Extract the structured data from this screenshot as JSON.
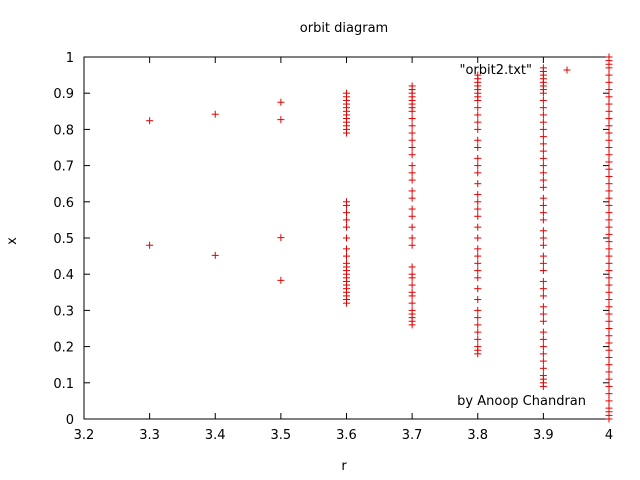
{
  "chart_data": {
    "type": "scatter",
    "title": "orbit diagram",
    "xlabel": "r",
    "ylabel": "x",
    "xlim": [
      3.2,
      4.0
    ],
    "ylim": [
      0,
      1
    ],
    "xticks": [
      "3.2",
      "3.3",
      "3.4",
      "3.5",
      "3.6",
      "3.7",
      "3.8",
      "3.9",
      "4"
    ],
    "yticks": [
      "0",
      "0.1",
      "0.2",
      "0.3",
      "0.4",
      "0.5",
      "0.6",
      "0.7",
      "0.8",
      "0.9",
      "1"
    ],
    "legend": {
      "position": "top-right",
      "marker": "+"
    },
    "annotation": "by Anoop Chandran",
    "grid": false,
    "marker_color": "#e60000",
    "series": [
      {
        "name": "\"orbit2.txt\"",
        "points": [
          [
            3.3,
            0.824
          ],
          [
            3.3,
            0.48
          ],
          [
            3.4,
            0.842
          ],
          [
            3.4,
            0.452
          ],
          [
            3.5,
            0.875
          ],
          [
            3.5,
            0.827
          ],
          [
            3.5,
            0.501
          ],
          [
            3.5,
            0.383
          ],
          [
            3.6,
            0.32
          ],
          [
            3.6,
            0.33
          ],
          [
            3.6,
            0.34
          ],
          [
            3.6,
            0.35
          ],
          [
            3.6,
            0.36
          ],
          [
            3.6,
            0.37
          ],
          [
            3.6,
            0.38
          ],
          [
            3.6,
            0.39
          ],
          [
            3.6,
            0.4
          ],
          [
            3.6,
            0.41
          ],
          [
            3.6,
            0.42
          ],
          [
            3.6,
            0.43
          ],
          [
            3.6,
            0.45
          ],
          [
            3.6,
            0.47
          ],
          [
            3.6,
            0.5
          ],
          [
            3.6,
            0.53
          ],
          [
            3.6,
            0.55
          ],
          [
            3.6,
            0.57
          ],
          [
            3.6,
            0.59
          ],
          [
            3.6,
            0.6
          ],
          [
            3.6,
            0.79
          ],
          [
            3.6,
            0.8
          ],
          [
            3.6,
            0.81
          ],
          [
            3.6,
            0.82
          ],
          [
            3.6,
            0.83
          ],
          [
            3.6,
            0.84
          ],
          [
            3.6,
            0.85
          ],
          [
            3.6,
            0.86
          ],
          [
            3.6,
            0.87
          ],
          [
            3.6,
            0.88
          ],
          [
            3.6,
            0.89
          ],
          [
            3.6,
            0.9
          ],
          [
            3.7,
            0.26
          ],
          [
            3.7,
            0.27
          ],
          [
            3.7,
            0.28
          ],
          [
            3.7,
            0.29
          ],
          [
            3.7,
            0.3
          ],
          [
            3.7,
            0.32
          ],
          [
            3.7,
            0.34
          ],
          [
            3.7,
            0.35
          ],
          [
            3.7,
            0.37
          ],
          [
            3.7,
            0.39
          ],
          [
            3.7,
            0.4
          ],
          [
            3.7,
            0.42
          ],
          [
            3.7,
            0.48
          ],
          [
            3.7,
            0.5
          ],
          [
            3.7,
            0.53
          ],
          [
            3.7,
            0.56
          ],
          [
            3.7,
            0.58
          ],
          [
            3.7,
            0.61
          ],
          [
            3.7,
            0.63
          ],
          [
            3.7,
            0.66
          ],
          [
            3.7,
            0.68
          ],
          [
            3.7,
            0.7
          ],
          [
            3.7,
            0.73
          ],
          [
            3.7,
            0.75
          ],
          [
            3.7,
            0.77
          ],
          [
            3.7,
            0.79
          ],
          [
            3.7,
            0.81
          ],
          [
            3.7,
            0.83
          ],
          [
            3.7,
            0.85
          ],
          [
            3.7,
            0.86
          ],
          [
            3.7,
            0.87
          ],
          [
            3.7,
            0.88
          ],
          [
            3.7,
            0.89
          ],
          [
            3.7,
            0.9
          ],
          [
            3.7,
            0.91
          ],
          [
            3.7,
            0.92
          ],
          [
            3.8,
            0.18
          ],
          [
            3.8,
            0.19
          ],
          [
            3.8,
            0.2
          ],
          [
            3.8,
            0.22
          ],
          [
            3.8,
            0.24
          ],
          [
            3.8,
            0.26
          ],
          [
            3.8,
            0.28
          ],
          [
            3.8,
            0.3
          ],
          [
            3.8,
            0.33
          ],
          [
            3.8,
            0.36
          ],
          [
            3.8,
            0.39
          ],
          [
            3.8,
            0.41
          ],
          [
            3.8,
            0.43
          ],
          [
            3.8,
            0.45
          ],
          [
            3.8,
            0.47
          ],
          [
            3.8,
            0.5
          ],
          [
            3.8,
            0.53
          ],
          [
            3.8,
            0.56
          ],
          [
            3.8,
            0.58
          ],
          [
            3.8,
            0.6
          ],
          [
            3.8,
            0.62
          ],
          [
            3.8,
            0.65
          ],
          [
            3.8,
            0.68
          ],
          [
            3.8,
            0.7
          ],
          [
            3.8,
            0.72
          ],
          [
            3.8,
            0.75
          ],
          [
            3.8,
            0.77
          ],
          [
            3.8,
            0.8
          ],
          [
            3.8,
            0.82
          ],
          [
            3.8,
            0.84
          ],
          [
            3.8,
            0.86
          ],
          [
            3.8,
            0.88
          ],
          [
            3.8,
            0.89
          ],
          [
            3.8,
            0.9
          ],
          [
            3.8,
            0.91
          ],
          [
            3.8,
            0.92
          ],
          [
            3.8,
            0.93
          ],
          [
            3.8,
            0.94
          ],
          [
            3.8,
            0.95
          ],
          [
            3.9,
            0.09
          ],
          [
            3.9,
            0.1
          ],
          [
            3.9,
            0.11
          ],
          [
            3.9,
            0.12
          ],
          [
            3.9,
            0.14
          ],
          [
            3.9,
            0.16
          ],
          [
            3.9,
            0.18
          ],
          [
            3.9,
            0.2
          ],
          [
            3.9,
            0.22
          ],
          [
            3.9,
            0.24
          ],
          [
            3.9,
            0.27
          ],
          [
            3.9,
            0.29
          ],
          [
            3.9,
            0.31
          ],
          [
            3.9,
            0.34
          ],
          [
            3.9,
            0.36
          ],
          [
            3.9,
            0.38
          ],
          [
            3.9,
            0.41
          ],
          [
            3.9,
            0.43
          ],
          [
            3.9,
            0.45
          ],
          [
            3.9,
            0.48
          ],
          [
            3.9,
            0.5
          ],
          [
            3.9,
            0.52
          ],
          [
            3.9,
            0.55
          ],
          [
            3.9,
            0.57
          ],
          [
            3.9,
            0.59
          ],
          [
            3.9,
            0.61
          ],
          [
            3.9,
            0.64
          ],
          [
            3.9,
            0.66
          ],
          [
            3.9,
            0.68
          ],
          [
            3.9,
            0.7
          ],
          [
            3.9,
            0.72
          ],
          [
            3.9,
            0.74
          ],
          [
            3.9,
            0.76
          ],
          [
            3.9,
            0.78
          ],
          [
            3.9,
            0.8
          ],
          [
            3.9,
            0.82
          ],
          [
            3.9,
            0.84
          ],
          [
            3.9,
            0.86
          ],
          [
            3.9,
            0.88
          ],
          [
            3.9,
            0.9
          ],
          [
            3.9,
            0.91
          ],
          [
            3.9,
            0.92
          ],
          [
            3.9,
            0.93
          ],
          [
            3.9,
            0.94
          ],
          [
            3.9,
            0.95
          ],
          [
            3.9,
            0.96
          ],
          [
            3.9,
            0.97
          ],
          [
            4.0,
            0.0
          ],
          [
            4.0,
            0.01
          ],
          [
            4.0,
            0.02
          ],
          [
            4.0,
            0.03
          ],
          [
            4.0,
            0.05
          ],
          [
            4.0,
            0.07
          ],
          [
            4.0,
            0.09
          ],
          [
            4.0,
            0.11
          ],
          [
            4.0,
            0.13
          ],
          [
            4.0,
            0.15
          ],
          [
            4.0,
            0.17
          ],
          [
            4.0,
            0.19
          ],
          [
            4.0,
            0.21
          ],
          [
            4.0,
            0.23
          ],
          [
            4.0,
            0.25
          ],
          [
            4.0,
            0.27
          ],
          [
            4.0,
            0.29
          ],
          [
            4.0,
            0.31
          ],
          [
            4.0,
            0.33
          ],
          [
            4.0,
            0.35
          ],
          [
            4.0,
            0.37
          ],
          [
            4.0,
            0.39
          ],
          [
            4.0,
            0.41
          ],
          [
            4.0,
            0.43
          ],
          [
            4.0,
            0.45
          ],
          [
            4.0,
            0.47
          ],
          [
            4.0,
            0.49
          ],
          [
            4.0,
            0.51
          ],
          [
            4.0,
            0.53
          ],
          [
            4.0,
            0.55
          ],
          [
            4.0,
            0.57
          ],
          [
            4.0,
            0.59
          ],
          [
            4.0,
            0.61
          ],
          [
            4.0,
            0.63
          ],
          [
            4.0,
            0.65
          ],
          [
            4.0,
            0.67
          ],
          [
            4.0,
            0.69
          ],
          [
            4.0,
            0.71
          ],
          [
            4.0,
            0.73
          ],
          [
            4.0,
            0.75
          ],
          [
            4.0,
            0.77
          ],
          [
            4.0,
            0.79
          ],
          [
            4.0,
            0.81
          ],
          [
            4.0,
            0.83
          ],
          [
            4.0,
            0.85
          ],
          [
            4.0,
            0.87
          ],
          [
            4.0,
            0.89
          ],
          [
            4.0,
            0.91
          ],
          [
            4.0,
            0.93
          ],
          [
            4.0,
            0.95
          ],
          [
            4.0,
            0.97
          ],
          [
            4.0,
            0.98
          ],
          [
            4.0,
            0.99
          ],
          [
            4.0,
            1.0
          ]
        ]
      }
    ]
  }
}
